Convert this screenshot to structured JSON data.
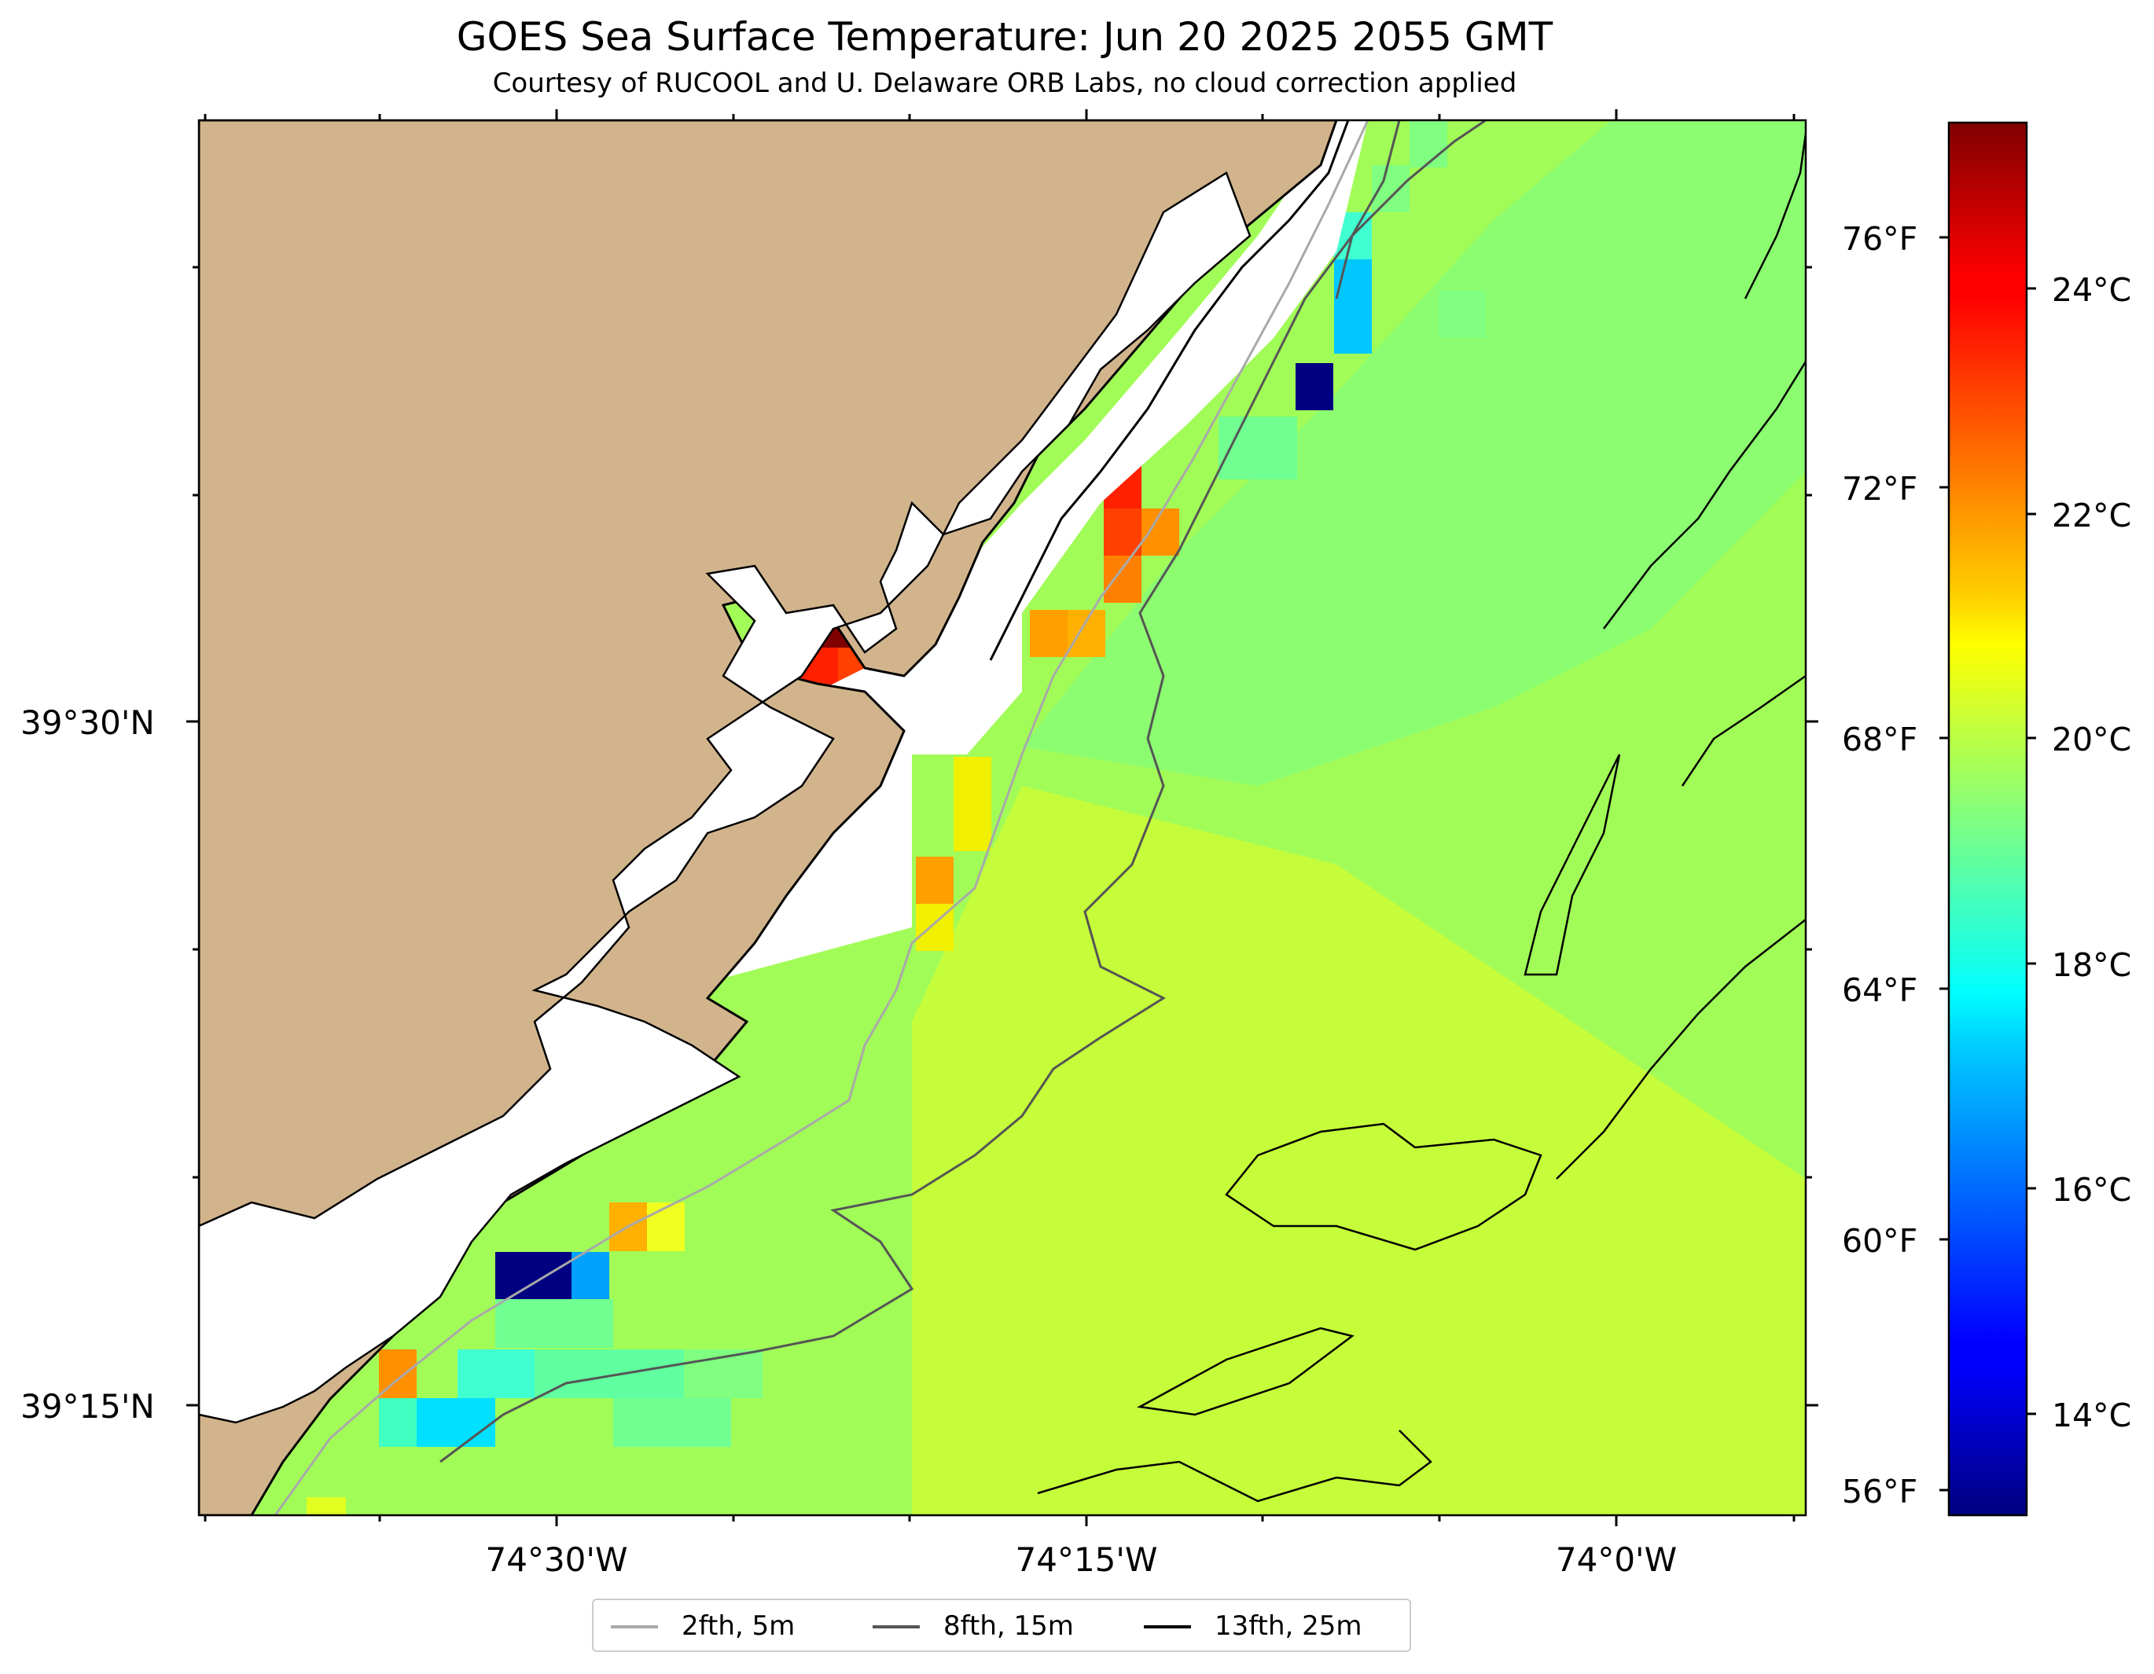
{
  "title": "GOES Sea Surface Temperature: Jun 20 2025 2055 GMT",
  "subtitle": "Courtesy of RUCOOL and U. Delaware ORB Labs, no cloud correction applied",
  "map": {
    "land_color": "#d2b48c",
    "water_nodata_color": "#ffffff",
    "lat_labels": [
      "39°30'N",
      "39°15'N"
    ],
    "lon_labels": [
      "74°30'W",
      "74°15'W",
      "74°0'W"
    ]
  },
  "colorbar": {
    "colormap": "jet",
    "celsius_range": [
      12.8,
      25.6
    ],
    "fahrenheit_labels": [
      "76°F",
      "72°F",
      "68°F",
      "64°F",
      "60°F",
      "56°F"
    ],
    "celsius_labels": [
      "24°C",
      "22°C",
      "20°C",
      "18°C",
      "16°C",
      "14°C"
    ]
  },
  "legend": {
    "items": [
      {
        "label": "2fth, 5m",
        "color": "#a9a9a9"
      },
      {
        "label": "8fth, 15m",
        "color": "#555555"
      },
      {
        "label": "13fth, 25m",
        "color": "#000000"
      }
    ]
  }
}
